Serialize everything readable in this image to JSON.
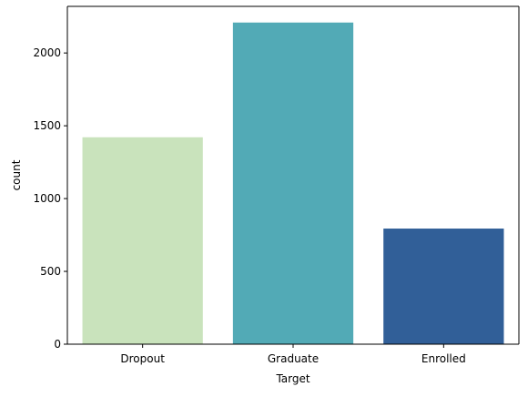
{
  "chart_data": {
    "type": "bar",
    "title": "",
    "xlabel": "Target",
    "ylabel": "count",
    "categories": [
      "Dropout",
      "Graduate",
      "Enrolled"
    ],
    "values": [
      1421,
      2209,
      794
    ],
    "colors": [
      "#c9e3bc",
      "#52aab6",
      "#315f98"
    ],
    "ylim": [
      0,
      2320
    ],
    "yticks": [
      0,
      500,
      1000,
      1500,
      2000
    ],
    "grid": false,
    "legend": "none"
  }
}
